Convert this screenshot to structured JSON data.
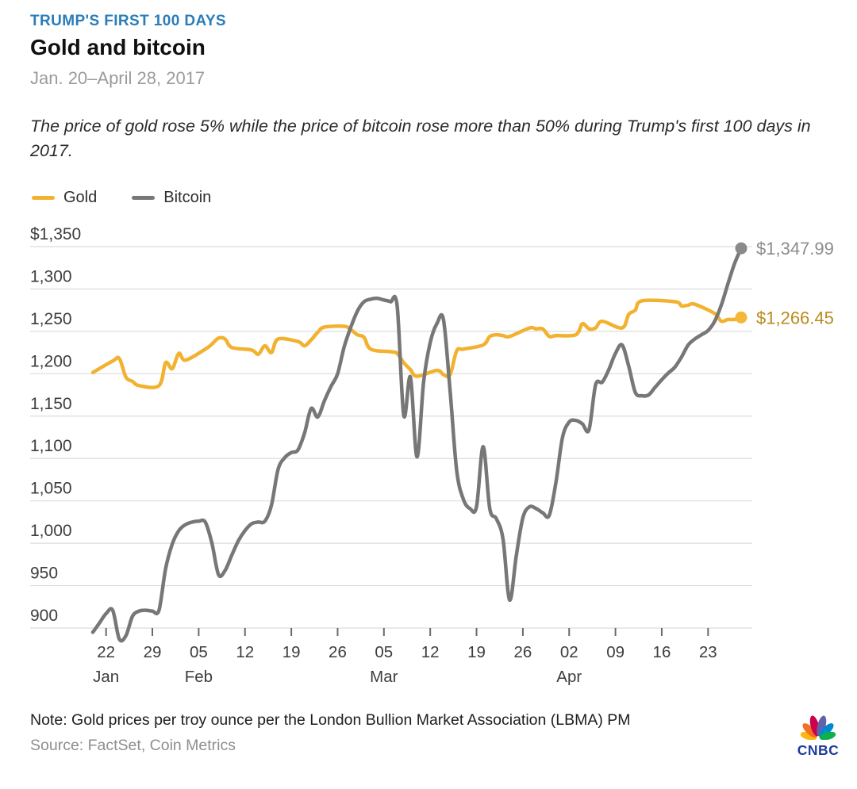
{
  "header": {
    "kicker": "TRUMP'S FIRST 100 DAYS",
    "title": "Gold and bitcoin",
    "date_range": "Jan. 20–April 28, 2017",
    "description": "The price of gold rose 5% while the price of bitcoin rose more than 50% during Trump's first 100 days in 2017."
  },
  "legend": [
    {
      "label": "Gold",
      "color": "#F2B230"
    },
    {
      "label": "Bitcoin",
      "color": "#777777"
    }
  ],
  "chart_data": {
    "type": "line",
    "title": "Gold and bitcoin",
    "x_unit": "days since Jan 20, 2017",
    "x_domain": [
      0,
      98
    ],
    "ylim": [
      900,
      1350
    ],
    "grid": true,
    "legend_position": "top-left",
    "grid_color": "#DCDCDC",
    "tick_color": "#6A6A6A",
    "tick_label_color": "#3D3D3D",
    "y_ticks": [
      {
        "value": 1350,
        "label": "$1,350"
      },
      {
        "value": 1300,
        "label": "1,300"
      },
      {
        "value": 1250,
        "label": "1,250"
      },
      {
        "value": 1200,
        "label": "1,200"
      },
      {
        "value": 1150,
        "label": "1,150"
      },
      {
        "value": 1100,
        "label": "1,100"
      },
      {
        "value": 1050,
        "label": "1,050"
      },
      {
        "value": 1000,
        "label": "1,000"
      },
      {
        "value": 950,
        "label": "950"
      },
      {
        "value": 900,
        "label": "900"
      }
    ],
    "x_ticks": [
      {
        "day": 2,
        "label": "22",
        "month": "Jan"
      },
      {
        "day": 9,
        "label": "29"
      },
      {
        "day": 16,
        "label": "05",
        "month": "Feb"
      },
      {
        "day": 23,
        "label": "12"
      },
      {
        "day": 30,
        "label": "19"
      },
      {
        "day": 37,
        "label": "26"
      },
      {
        "day": 44,
        "label": "05",
        "month": "Mar"
      },
      {
        "day": 51,
        "label": "12"
      },
      {
        "day": 58,
        "label": "19"
      },
      {
        "day": 65,
        "label": "26"
      },
      {
        "day": 72,
        "label": "02",
        "month": "Apr"
      },
      {
        "day": 79,
        "label": "09"
      },
      {
        "day": 86,
        "label": "16"
      },
      {
        "day": 93,
        "label": "23"
      }
    ],
    "series": [
      {
        "name": "Gold",
        "color": "#F2B230",
        "line_width": 4.5,
        "end_label": "$1,266.45",
        "end_label_color": "#BA8A1E",
        "end_dot_color": "#F4B739",
        "points": [
          [
            0,
            1201.5
          ],
          [
            3,
            1215
          ],
          [
            4,
            1218
          ],
          [
            5,
            1196
          ],
          [
            6,
            1191
          ],
          [
            7,
            1186
          ],
          [
            10,
            1186
          ],
          [
            11,
            1213
          ],
          [
            12,
            1206
          ],
          [
            13,
            1224
          ],
          [
            14,
            1216
          ],
          [
            17,
            1229
          ],
          [
            18,
            1235
          ],
          [
            19,
            1242
          ],
          [
            20,
            1241
          ],
          [
            21,
            1231
          ],
          [
            24,
            1228
          ],
          [
            25,
            1223
          ],
          [
            26,
            1233
          ],
          [
            27,
            1225
          ],
          [
            28,
            1241
          ],
          [
            31,
            1238
          ],
          [
            32,
            1233
          ],
          [
            33,
            1240
          ],
          [
            34,
            1249
          ],
          [
            35,
            1255
          ],
          [
            38,
            1256
          ],
          [
            39,
            1252
          ],
          [
            40,
            1246
          ],
          [
            41,
            1243
          ],
          [
            42,
            1229
          ],
          [
            45,
            1226
          ],
          [
            46,
            1224
          ],
          [
            47,
            1213
          ],
          [
            48,
            1205
          ],
          [
            49,
            1197
          ],
          [
            52,
            1204
          ],
          [
            53,
            1199
          ],
          [
            54,
            1199
          ],
          [
            55,
            1227
          ],
          [
            56,
            1229
          ],
          [
            59,
            1234
          ],
          [
            60,
            1244
          ],
          [
            61,
            1246
          ],
          [
            62,
            1245
          ],
          [
            63,
            1244
          ],
          [
            66,
            1254
          ],
          [
            67,
            1253
          ],
          [
            68,
            1253
          ],
          [
            69,
            1244
          ],
          [
            70,
            1245
          ],
          [
            73,
            1246
          ],
          [
            74,
            1259
          ],
          [
            75,
            1253
          ],
          [
            76,
            1254
          ],
          [
            77,
            1262
          ],
          [
            80,
            1254
          ],
          [
            81,
            1270
          ],
          [
            82,
            1275
          ],
          [
            83,
            1286
          ],
          [
            88,
            1285
          ],
          [
            89,
            1280
          ],
          [
            90,
            1281
          ],
          [
            91,
            1282
          ],
          [
            94,
            1271
          ],
          [
            95,
            1262
          ],
          [
            96,
            1264
          ],
          [
            97,
            1264
          ],
          [
            98,
            1266.45
          ]
        ]
      },
      {
        "name": "Bitcoin",
        "color": "#777777",
        "line_width": 4.5,
        "end_label": "$1,347.99",
        "end_label_color": "#8C8C8C",
        "end_dot_color": "#8A8A8A",
        "points": [
          [
            0,
            895
          ],
          [
            1,
            906
          ],
          [
            2,
            917
          ],
          [
            3,
            921
          ],
          [
            4,
            887
          ],
          [
            5,
            891
          ],
          [
            6,
            914
          ],
          [
            7,
            920
          ],
          [
            8,
            921
          ],
          [
            9,
            920
          ],
          [
            10,
            921
          ],
          [
            11,
            970
          ],
          [
            12,
            999
          ],
          [
            13,
            1015
          ],
          [
            14,
            1022
          ],
          [
            15,
            1025
          ],
          [
            16,
            1026
          ],
          [
            17,
            1025
          ],
          [
            18,
            1000
          ],
          [
            19,
            963
          ],
          [
            20,
            968
          ],
          [
            21,
            986
          ],
          [
            22,
            1003
          ],
          [
            23,
            1015
          ],
          [
            24,
            1023
          ],
          [
            25,
            1025
          ],
          [
            26,
            1026
          ],
          [
            27,
            1045
          ],
          [
            28,
            1087
          ],
          [
            29,
            1101
          ],
          [
            30,
            1107
          ],
          [
            31,
            1110
          ],
          [
            32,
            1130
          ],
          [
            33,
            1159
          ],
          [
            34,
            1149
          ],
          [
            35,
            1168
          ],
          [
            36,
            1185
          ],
          [
            37,
            1200
          ],
          [
            38,
            1232
          ],
          [
            39,
            1255
          ],
          [
            40,
            1274
          ],
          [
            41,
            1285
          ],
          [
            42,
            1288
          ],
          [
            43,
            1289
          ],
          [
            44,
            1287
          ],
          [
            45,
            1285
          ],
          [
            46,
            1280
          ],
          [
            47,
            1151
          ],
          [
            48,
            1196
          ],
          [
            49,
            1102
          ],
          [
            50,
            1190
          ],
          [
            51,
            1237
          ],
          [
            52,
            1259
          ],
          [
            53,
            1264
          ],
          [
            54,
            1180
          ],
          [
            55,
            1086
          ],
          [
            56,
            1052
          ],
          [
            57,
            1041
          ],
          [
            58,
            1043
          ],
          [
            59,
            1114
          ],
          [
            60,
            1041
          ],
          [
            61,
            1029
          ],
          [
            62,
            1005
          ],
          [
            63,
            933
          ],
          [
            64,
            985
          ],
          [
            65,
            1030
          ],
          [
            66,
            1043
          ],
          [
            67,
            1041
          ],
          [
            68,
            1036
          ],
          [
            69,
            1033
          ],
          [
            70,
            1072
          ],
          [
            71,
            1125
          ],
          [
            72,
            1143
          ],
          [
            73,
            1145
          ],
          [
            74,
            1141
          ],
          [
            75,
            1134
          ],
          [
            76,
            1187
          ],
          [
            77,
            1190
          ],
          [
            78,
            1205
          ],
          [
            79,
            1224
          ],
          [
            80,
            1234
          ],
          [
            81,
            1209
          ],
          [
            82,
            1178
          ],
          [
            83,
            1174
          ],
          [
            84,
            1175
          ],
          [
            85,
            1184
          ],
          [
            86,
            1193
          ],
          [
            87,
            1201
          ],
          [
            88,
            1208
          ],
          [
            89,
            1220
          ],
          [
            90,
            1234
          ],
          [
            91,
            1241
          ],
          [
            92,
            1246
          ],
          [
            93,
            1251
          ],
          [
            94,
            1262
          ],
          [
            95,
            1281
          ],
          [
            96,
            1306
          ],
          [
            97,
            1330
          ],
          [
            98,
            1347.99
          ]
        ]
      }
    ]
  },
  "footer": {
    "note": "Note: Gold prices per troy ounce per the London Bullion Market Association (LBMA) PM",
    "source": "Source: FactSet, Coin Metrics",
    "logo_text": "CNBC"
  }
}
